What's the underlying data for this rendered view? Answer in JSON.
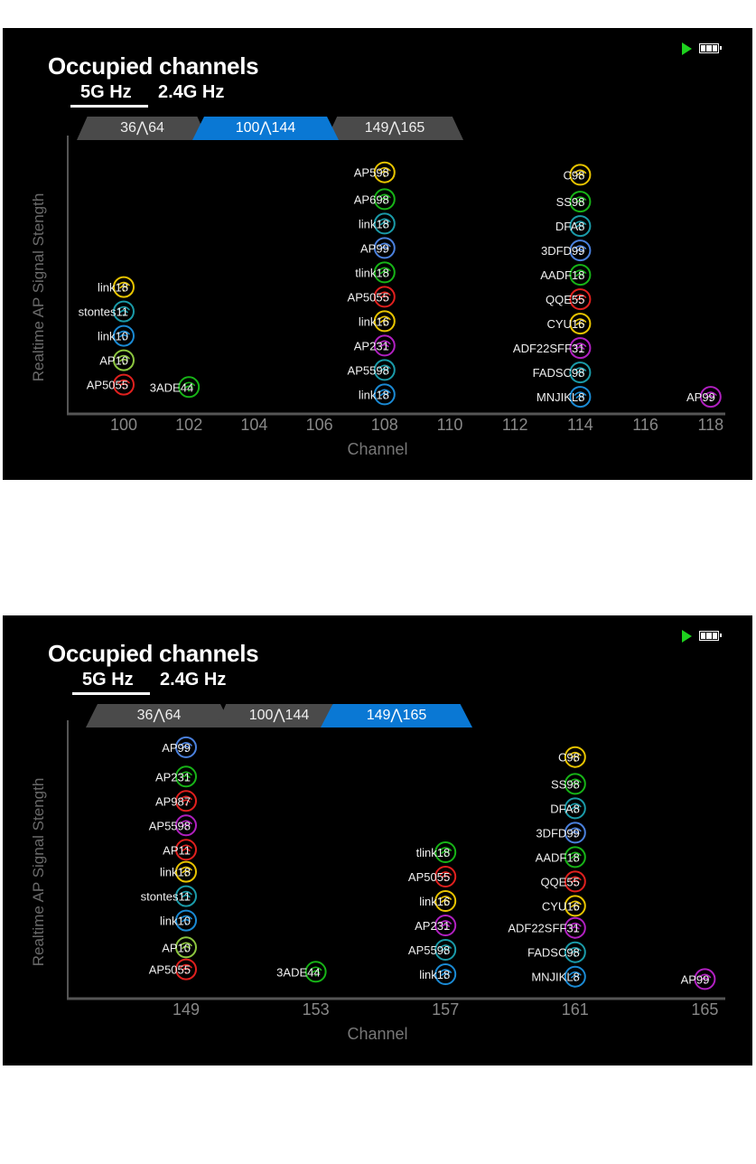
{
  "status": {
    "play_icon": "play-icon",
    "battery_icon": "battery-full-icon",
    "play_color": "#1ed21e"
  },
  "panels": [
    {
      "title": "Occupied channels",
      "bands": [
        "5G Hz",
        "2.4G Hz"
      ],
      "active_band": "5G Hz",
      "tabs": [
        "36⋀64",
        "100⋀144",
        "149⋀165"
      ],
      "active_tab": "100⋀144",
      "accent": "#0a78d4"
    },
    {
      "title": "Occupied channels",
      "bands": [
        "5G Hz",
        "2.4G Hz"
      ],
      "active_band": "5G Hz",
      "tabs": [
        "36⋀64",
        "100⋀144",
        "149⋀165"
      ],
      "active_tab": "149⋀165",
      "accent": "#0a78d4"
    }
  ],
  "chart_data": [
    {
      "type": "scatter",
      "title": "Occupied channels",
      "xlabel": "Channel",
      "ylabel": "Realtime AP Signal Stength",
      "xticks": [
        100,
        102,
        104,
        106,
        108,
        110,
        112,
        114,
        116,
        118
      ],
      "xlim": [
        98.3,
        119
      ],
      "ylim": [
        0,
        105
      ],
      "points": [
        {
          "ch": 108,
          "s": 99,
          "label": "AP598",
          "color": "#e8c400"
        },
        {
          "ch": 108,
          "s": 88,
          "label": "AP698",
          "color": "#17b317"
        },
        {
          "ch": 108,
          "s": 78,
          "label": "link18",
          "color": "#1a9aa8"
        },
        {
          "ch": 108,
          "s": 68,
          "label": "AP99",
          "color": "#4a80dc"
        },
        {
          "ch": 108,
          "s": 58,
          "label": "tlink18",
          "color": "#17b317"
        },
        {
          "ch": 108,
          "s": 48,
          "label": "AP5055",
          "color": "#e0201e"
        },
        {
          "ch": 108,
          "s": 38,
          "label": "link16",
          "color": "#e8c400"
        },
        {
          "ch": 108,
          "s": 28,
          "label": "AP231",
          "color": "#b020c0"
        },
        {
          "ch": 108,
          "s": 18,
          "label": "AP5598",
          "color": "#1a9aa8"
        },
        {
          "ch": 108,
          "s": 8,
          "label": "link18",
          "color": "#1a8ad4"
        },
        {
          "ch": 114,
          "s": 98,
          "label": "C98",
          "color": "#e8c400"
        },
        {
          "ch": 114,
          "s": 87,
          "label": "SS98",
          "color": "#17b317"
        },
        {
          "ch": 114,
          "s": 77,
          "label": "DFA8",
          "color": "#1a9aa8"
        },
        {
          "ch": 114,
          "s": 67,
          "label": "3DFD99",
          "color": "#4a80dc"
        },
        {
          "ch": 114,
          "s": 57,
          "label": "AADF18",
          "color": "#17b317"
        },
        {
          "ch": 114,
          "s": 47,
          "label": "QQE55",
          "color": "#e0201e"
        },
        {
          "ch": 114,
          "s": 37,
          "label": "CYU16",
          "color": "#e8c400"
        },
        {
          "ch": 114,
          "s": 27,
          "label": "ADF22SFF31",
          "color": "#b020c0"
        },
        {
          "ch": 114,
          "s": 17,
          "label": "FADSC98",
          "color": "#1a9aa8"
        },
        {
          "ch": 114,
          "s": 7,
          "label": "MNJIKL8",
          "color": "#1a8ad4"
        },
        {
          "ch": 100,
          "s": 52,
          "label": "link18",
          "color": "#e8c400"
        },
        {
          "ch": 100,
          "s": 42,
          "label": "stontes11",
          "color": "#1a9aa8"
        },
        {
          "ch": 100,
          "s": 32,
          "label": "link10",
          "color": "#1a8ad4"
        },
        {
          "ch": 100,
          "s": 22,
          "label": "AP10",
          "color": "#8cc63f"
        },
        {
          "ch": 100,
          "s": 12,
          "label": "AP5055",
          "color": "#e0201e"
        },
        {
          "ch": 102,
          "s": 11,
          "label": "3ADE44",
          "color": "#17b317"
        },
        {
          "ch": 118,
          "s": 7,
          "label": "AP99",
          "color": "#b020c0"
        }
      ]
    },
    {
      "type": "scatter",
      "title": "Occupied channels",
      "xlabel": "Channel",
      "ylabel": "Realtime AP Signal Stength",
      "xticks": [
        149,
        153,
        157,
        161,
        165
      ],
      "xlim": [
        147.2,
        166
      ],
      "ylim": [
        0,
        105
      ],
      "points": [
        {
          "ch": 149,
          "s": 103,
          "label": "AP99",
          "color": "#4a80dc"
        },
        {
          "ch": 149,
          "s": 91,
          "label": "AP231",
          "color": "#17b317"
        },
        {
          "ch": 149,
          "s": 81,
          "label": "AP987",
          "color": "#e0201e"
        },
        {
          "ch": 149,
          "s": 71,
          "label": "AP5598",
          "color": "#b020c0"
        },
        {
          "ch": 149,
          "s": 61,
          "label": "AP11",
          "color": "#e0201e"
        },
        {
          "ch": 149,
          "s": 52,
          "label": "link18",
          "color": "#e8c400"
        },
        {
          "ch": 149,
          "s": 42,
          "label": "stontes11",
          "color": "#1a9aa8"
        },
        {
          "ch": 149,
          "s": 32,
          "label": "link10",
          "color": "#1a8ad4"
        },
        {
          "ch": 149,
          "s": 21,
          "label": "AP10",
          "color": "#8cc63f"
        },
        {
          "ch": 149,
          "s": 12,
          "label": "AP5055",
          "color": "#e0201e"
        },
        {
          "ch": 153,
          "s": 11,
          "label": "3ADE44",
          "color": "#17b317"
        },
        {
          "ch": 157,
          "s": 60,
          "label": "tlink18",
          "color": "#17b317"
        },
        {
          "ch": 157,
          "s": 50,
          "label": "AP5055",
          "color": "#e0201e"
        },
        {
          "ch": 157,
          "s": 40,
          "label": "link16",
          "color": "#e8c400"
        },
        {
          "ch": 157,
          "s": 30,
          "label": "AP231",
          "color": "#b020c0"
        },
        {
          "ch": 157,
          "s": 20,
          "label": "AP5598",
          "color": "#1a9aa8"
        },
        {
          "ch": 157,
          "s": 10,
          "label": "link18",
          "color": "#1a8ad4"
        },
        {
          "ch": 161,
          "s": 99,
          "label": "C98",
          "color": "#e8c400"
        },
        {
          "ch": 161,
          "s": 88,
          "label": "SS98",
          "color": "#17b317"
        },
        {
          "ch": 161,
          "s": 78,
          "label": "DFA8",
          "color": "#1a9aa8"
        },
        {
          "ch": 161,
          "s": 68,
          "label": "3DFD99",
          "color": "#4a80dc"
        },
        {
          "ch": 161,
          "s": 58,
          "label": "AADF18",
          "color": "#17b317"
        },
        {
          "ch": 161,
          "s": 48,
          "label": "QQE55",
          "color": "#e0201e"
        },
        {
          "ch": 161,
          "s": 38,
          "label": "CYU16",
          "color": "#e8c400"
        },
        {
          "ch": 161,
          "s": 29,
          "label": "ADF22SFF31",
          "color": "#b020c0"
        },
        {
          "ch": 161,
          "s": 19,
          "label": "FADSC98",
          "color": "#1a9aa8"
        },
        {
          "ch": 161,
          "s": 9,
          "label": "MNJIKL8",
          "color": "#1a8ad4"
        },
        {
          "ch": 165,
          "s": 8,
          "label": "AP99",
          "color": "#b020c0"
        }
      ]
    }
  ]
}
